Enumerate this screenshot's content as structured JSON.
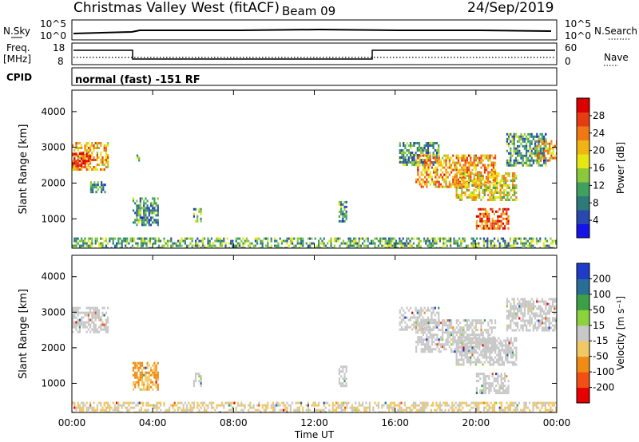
{
  "header": {
    "station": "Christmas Valley West (fitACF)",
    "beam": "Beam 09",
    "date": "24/Sep/2019"
  },
  "left_labels": {
    "nsky": "N.Sky",
    "freq_line1": "Freq.",
    "freq_line2": "[MHz]",
    "cpid": "CPID"
  },
  "right_labels": {
    "nsearch": "N.Search",
    "nave": "Nave"
  },
  "noise_panel": {
    "left_ticks": [
      "10^5",
      "10^0"
    ],
    "right_ticks": [
      "10^5",
      "10^0"
    ]
  },
  "freq_panel": {
    "left_ticks": [
      "18",
      "8"
    ],
    "right_ticks": [
      "60",
      "0"
    ]
  },
  "cpid_text": "normal (fast) -151 RF",
  "chart_data": [
    {
      "type": "heatmap",
      "name": "power",
      "ylabel": "Slant Range [km]",
      "xlabel": "",
      "yticks": [
        1000,
        2000,
        3000,
        4000
      ],
      "ylim": [
        180,
        4600
      ],
      "xlim": [
        0,
        24
      ],
      "colorbar": {
        "label": "Power [dB]",
        "ticks": [
          4,
          8,
          12,
          16,
          20,
          24,
          28
        ],
        "range": [
          0,
          32
        ],
        "colors": [
          "#1414e6",
          "#2848b0",
          "#2e7a7a",
          "#3fa060",
          "#8cc83c",
          "#e6e614",
          "#f0b414",
          "#f07814",
          "#e63c14",
          "#dc0000"
        ]
      },
      "echo_regions": [
        {
          "t": [
            0.0,
            1.8
          ],
          "r": [
            2350,
            3150
          ],
          "v": 22
        },
        {
          "t": [
            0.0,
            0.9
          ],
          "r": [
            2450,
            2850
          ],
          "v": 28
        },
        {
          "t": [
            0.9,
            1.6
          ],
          "r": [
            1750,
            2050
          ],
          "v": 8
        },
        {
          "t": [
            3.2,
            3.4
          ],
          "r": [
            2600,
            2800
          ],
          "v": 12
        },
        {
          "t": [
            3.0,
            4.3
          ],
          "r": [
            800,
            1600
          ],
          "v": 10
        },
        {
          "t": [
            6.0,
            6.4
          ],
          "r": [
            950,
            1300
          ],
          "v": 12
        },
        {
          "t": [
            13.2,
            13.6
          ],
          "r": [
            900,
            1500
          ],
          "v": 10
        },
        {
          "t": [
            16.2,
            18.2
          ],
          "r": [
            2500,
            3150
          ],
          "v": 10
        },
        {
          "t": [
            17.0,
            21.0
          ],
          "r": [
            1900,
            2800
          ],
          "v": 22
        },
        {
          "t": [
            19.0,
            22.0
          ],
          "r": [
            1500,
            2300
          ],
          "v": 18
        },
        {
          "t": [
            20.0,
            21.6
          ],
          "r": [
            700,
            1300
          ],
          "v": 26
        },
        {
          "t": [
            21.5,
            23.5
          ],
          "r": [
            2500,
            3400
          ],
          "v": 10
        },
        {
          "t": [
            23.0,
            24.0
          ],
          "r": [
            2600,
            3200
          ],
          "v": 22
        },
        {
          "t": [
            0.0,
            24.0
          ],
          "r": [
            180,
            480
          ],
          "v": 12
        }
      ]
    },
    {
      "type": "heatmap",
      "name": "velocity",
      "ylabel": "Slant Range [km]",
      "xlabel": "Time UT",
      "xticks": [
        "00:00",
        "04:00",
        "08:00",
        "12:00",
        "16:00",
        "20:00",
        "00:00"
      ],
      "yticks": [
        1000,
        2000,
        3000,
        4000
      ],
      "ylim": [
        180,
        4600
      ],
      "xlim": [
        0,
        24
      ],
      "colorbar": {
        "label": "Velocity [m s⁻¹]",
        "ticks": [
          "200",
          "100",
          "50",
          "15",
          "-15",
          "-50",
          "-100",
          "-200"
        ],
        "range": [
          -250,
          250
        ],
        "colors": [
          "#e60000",
          "#f05014",
          "#f08c14",
          "#f0c864",
          "#c8c8c8",
          "#8cd23c",
          "#3ca046",
          "#286e96",
          "#1e3cc8"
        ]
      },
      "echo_regions": [
        {
          "t": [
            0.0,
            1.8
          ],
          "r": [
            2450,
            3150
          ],
          "v": 0
        },
        {
          "t": [
            3.0,
            4.3
          ],
          "r": [
            800,
            1600
          ],
          "v": -80
        },
        {
          "t": [
            6.0,
            6.4
          ],
          "r": [
            950,
            1300
          ],
          "v": 20
        },
        {
          "t": [
            13.2,
            13.6
          ],
          "r": [
            900,
            1500
          ],
          "v": 0
        },
        {
          "t": [
            16.2,
            18.2
          ],
          "r": [
            2500,
            3150
          ],
          "v": 0
        },
        {
          "t": [
            17.0,
            21.0
          ],
          "r": [
            1900,
            2800
          ],
          "v": 0
        },
        {
          "t": [
            19.0,
            22.0
          ],
          "r": [
            1500,
            2300
          ],
          "v": 0
        },
        {
          "t": [
            20.0,
            21.6
          ],
          "r": [
            700,
            1300
          ],
          "v": 0
        },
        {
          "t": [
            21.5,
            24.0
          ],
          "r": [
            2500,
            3400
          ],
          "v": 0
        },
        {
          "t": [
            0.0,
            24.0
          ],
          "r": [
            180,
            480
          ],
          "v": -30
        }
      ]
    }
  ]
}
